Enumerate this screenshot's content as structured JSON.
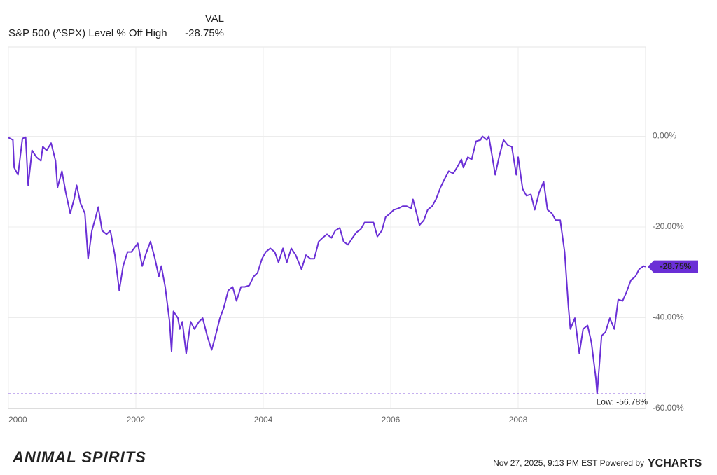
{
  "chart_data": {
    "type": "line",
    "header_label": "VAL",
    "title": "S&P 500 (^SPX) Level % Off High",
    "header_value": "-28.75%",
    "color": "#6a2fd6",
    "x": [
      2000.0,
      2000.07,
      2000.09,
      2000.15,
      2000.22,
      2000.27,
      2000.31,
      2000.37,
      2000.44,
      2000.51,
      2000.54,
      2000.6,
      2000.67,
      2000.74,
      2000.77,
      2000.84,
      2000.9,
      2000.97,
      2001.03,
      2001.07,
      2001.13,
      2001.2,
      2001.25,
      2001.31,
      2001.37,
      2001.41,
      2001.47,
      2001.54,
      2001.6,
      2001.67,
      2001.74,
      2001.8,
      2001.87,
      2001.93,
      2002.03,
      2002.1,
      2002.16,
      2002.23,
      2002.3,
      2002.36,
      2002.4,
      2002.46,
      2002.53,
      2002.56,
      2002.59,
      2002.66,
      2002.69,
      2002.73,
      2002.79,
      2002.86,
      2002.92,
      2002.99,
      2003.05,
      2003.12,
      2003.19,
      2003.25,
      2003.32,
      2003.38,
      2003.45,
      2003.52,
      2003.58,
      2003.65,
      2003.71,
      2003.78,
      2003.85,
      2003.91,
      2003.98,
      2004.04,
      2004.11,
      2004.18,
      2004.24,
      2004.31,
      2004.37,
      2004.44,
      2004.51,
      2004.6,
      2004.67,
      2004.74,
      2004.8,
      2004.87,
      2004.93,
      2005.0,
      2005.07,
      2005.13,
      2005.2,
      2005.26,
      2005.33,
      2005.4,
      2005.46,
      2005.53,
      2005.59,
      2005.66,
      2005.73,
      2005.79,
      2005.86,
      2005.92,
      2005.99,
      2006.05,
      2006.12,
      2006.19,
      2006.25,
      2006.32,
      2006.35,
      2006.42,
      2006.45,
      2006.52,
      2006.58,
      2006.65,
      2006.71,
      2006.78,
      2006.85,
      2006.91,
      2006.98,
      2007.04,
      2007.11,
      2007.14,
      2007.21,
      2007.27,
      2007.34,
      2007.41,
      2007.44,
      2007.51,
      2007.54,
      2007.6,
      2007.64,
      2007.7,
      2007.77,
      2007.84,
      2007.9,
      2007.97,
      2008.0,
      2008.07,
      2008.13,
      2008.2,
      2008.26,
      2008.33,
      2008.4,
      2008.46,
      2008.53,
      2008.59,
      2008.66,
      2008.73,
      2008.79,
      2008.82,
      2008.89,
      2008.96,
      2009.02,
      2009.09,
      2009.15,
      2009.22,
      2009.24,
      2009.31,
      2009.37,
      2009.44,
      2009.51,
      2009.57,
      2009.64,
      2009.7,
      2009.77,
      2009.84,
      2009.9,
      2009.97,
      2010.0
    ],
    "values": [
      -0.3,
      -0.8,
      -6.9,
      -8.5,
      -0.5,
      -0.2,
      -10.8,
      -3.1,
      -4.6,
      -5.4,
      -2.3,
      -3.1,
      -1.5,
      -5.4,
      -11.3,
      -7.7,
      -12.4,
      -17.0,
      -13.9,
      -10.8,
      -14.7,
      -17.0,
      -27.0,
      -20.8,
      -17.8,
      -15.6,
      -20.8,
      -21.6,
      -20.8,
      -26.2,
      -34.0,
      -28.6,
      -25.5,
      -25.5,
      -23.6,
      -28.6,
      -25.8,
      -23.2,
      -27.0,
      -30.9,
      -28.6,
      -33.2,
      -40.9,
      -47.4,
      -38.6,
      -40.1,
      -42.5,
      -40.9,
      -47.9,
      -40.9,
      -42.5,
      -40.9,
      -40.1,
      -44.0,
      -47.1,
      -44.0,
      -40.1,
      -37.8,
      -34.0,
      -33.2,
      -36.3,
      -33.2,
      -33.2,
      -32.9,
      -30.9,
      -30.1,
      -27.0,
      -25.5,
      -24.7,
      -25.5,
      -27.8,
      -24.7,
      -27.8,
      -24.7,
      -26.2,
      -29.3,
      -26.2,
      -27.0,
      -27.0,
      -23.2,
      -22.4,
      -21.6,
      -22.4,
      -20.8,
      -20.2,
      -23.2,
      -23.9,
      -22.4,
      -21.2,
      -20.5,
      -19.0,
      -19.0,
      -19.0,
      -22.1,
      -20.8,
      -17.8,
      -17.0,
      -16.2,
      -15.9,
      -15.4,
      -15.4,
      -15.9,
      -13.9,
      -17.8,
      -19.6,
      -18.5,
      -16.2,
      -15.4,
      -13.9,
      -11.3,
      -9.3,
      -7.7,
      -8.2,
      -6.9,
      -5.1,
      -6.9,
      -4.6,
      -5.1,
      -1.1,
      -0.8,
      0,
      -0.8,
      0,
      -5.1,
      -8.5,
      -4.6,
      -0.8,
      -2.0,
      -2.3,
      -8.5,
      -4.6,
      -11.6,
      -13.1,
      -12.8,
      -16.2,
      -12.4,
      -10.0,
      -16.2,
      -17.0,
      -18.5,
      -18.5,
      -25.5,
      -37.8,
      -42.5,
      -40.1,
      -47.9,
      -42.5,
      -41.7,
      -45.5,
      -53.3,
      -56.78,
      -44.0,
      -43.2,
      -40.1,
      -42.5,
      -36.0,
      -36.3,
      -34.4,
      -31.7,
      -30.9,
      -29.3,
      -28.6,
      -28.75
    ],
    "last_value_label": "-28.75%",
    "low_value": -56.78,
    "low_label": "Low: -56.78%",
    "xlim": [
      2000,
      2010
    ],
    "xticks": [
      2000,
      2002,
      2004,
      2006,
      2008
    ],
    "ylim": [
      -60,
      20
    ],
    "yticks": [
      {
        "value": 0,
        "label": "0.00%"
      },
      {
        "value": -20,
        "label": "-20.00%"
      },
      {
        "value": -40,
        "label": "-40.00%"
      },
      {
        "value": -60,
        "label": "-60.00%"
      }
    ],
    "grid": true,
    "footer": "Nov 27, 2025, 9:13 PM EST Powered by",
    "brand": "YCHARTS",
    "logo": "ANIMAL SPIRITS"
  }
}
